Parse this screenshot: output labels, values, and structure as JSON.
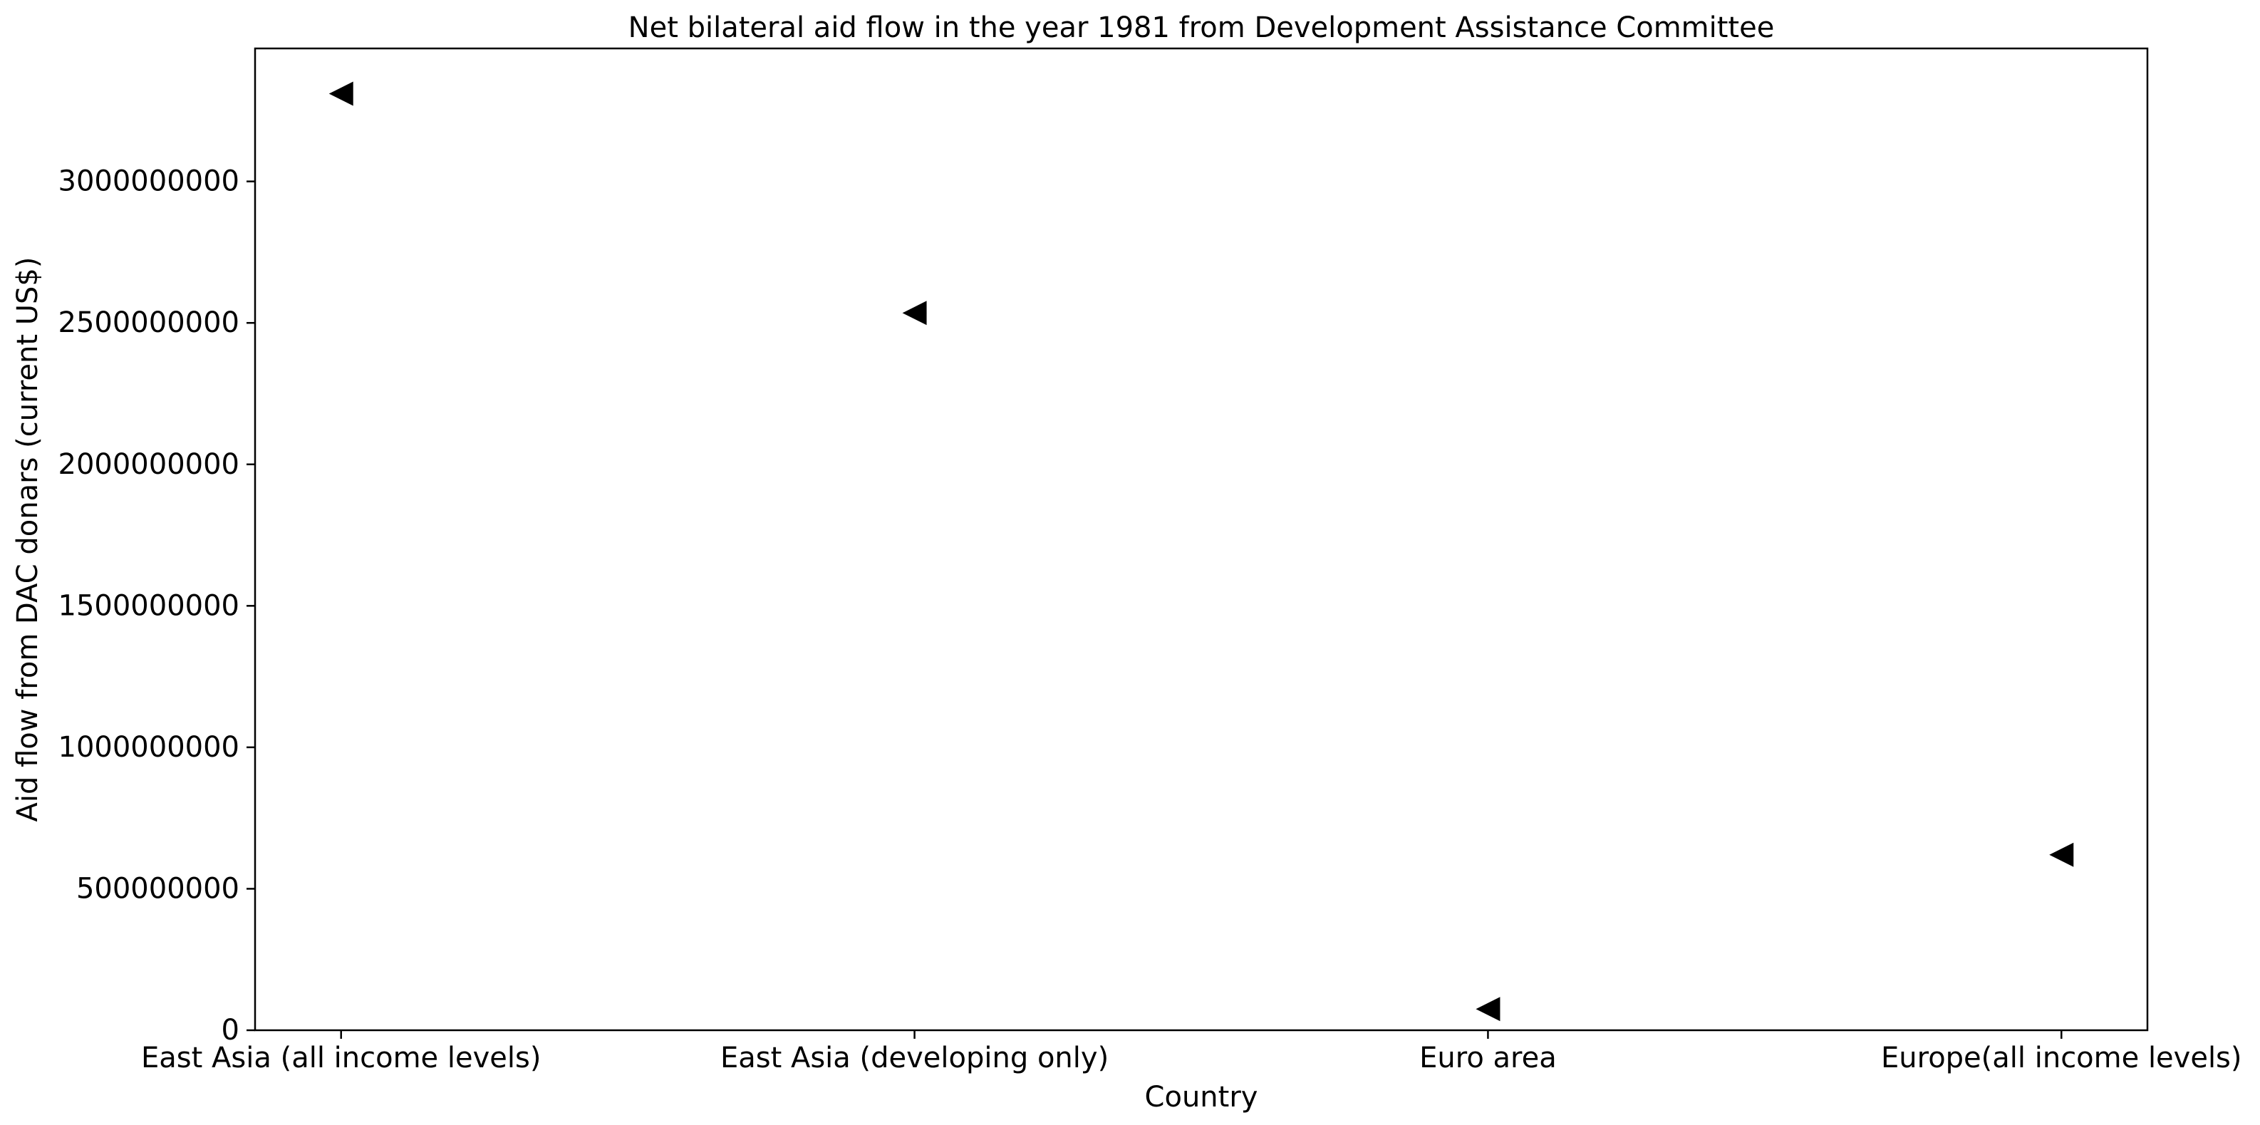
{
  "chart_data": {
    "type": "scatter",
    "title": "Net bilateral aid flow in the year 1981 from Development Assistance Committee",
    "xlabel": "Country",
    "ylabel": "Aid flow from DAC donars (current US$)",
    "categories": [
      "East Asia (all income levels)",
      "East Asia (developing only)",
      "Euro area",
      "Europe(all income levels)"
    ],
    "series": [
      {
        "values": [
          3310000000,
          2535000000,
          75000000,
          620000000
        ],
        "marker": "triangle-left",
        "color": "#000000"
      }
    ],
    "yticks": [
      0,
      500000000,
      1000000000,
      1500000000,
      2000000000,
      2500000000,
      3000000000
    ],
    "ytick_labels": [
      "0",
      "500000000",
      "1000000000",
      "1500000000",
      "2000000000",
      "2500000000",
      "3000000000"
    ],
    "ylim": [
      0,
      3470000000
    ],
    "grid": false,
    "legend": "none"
  }
}
